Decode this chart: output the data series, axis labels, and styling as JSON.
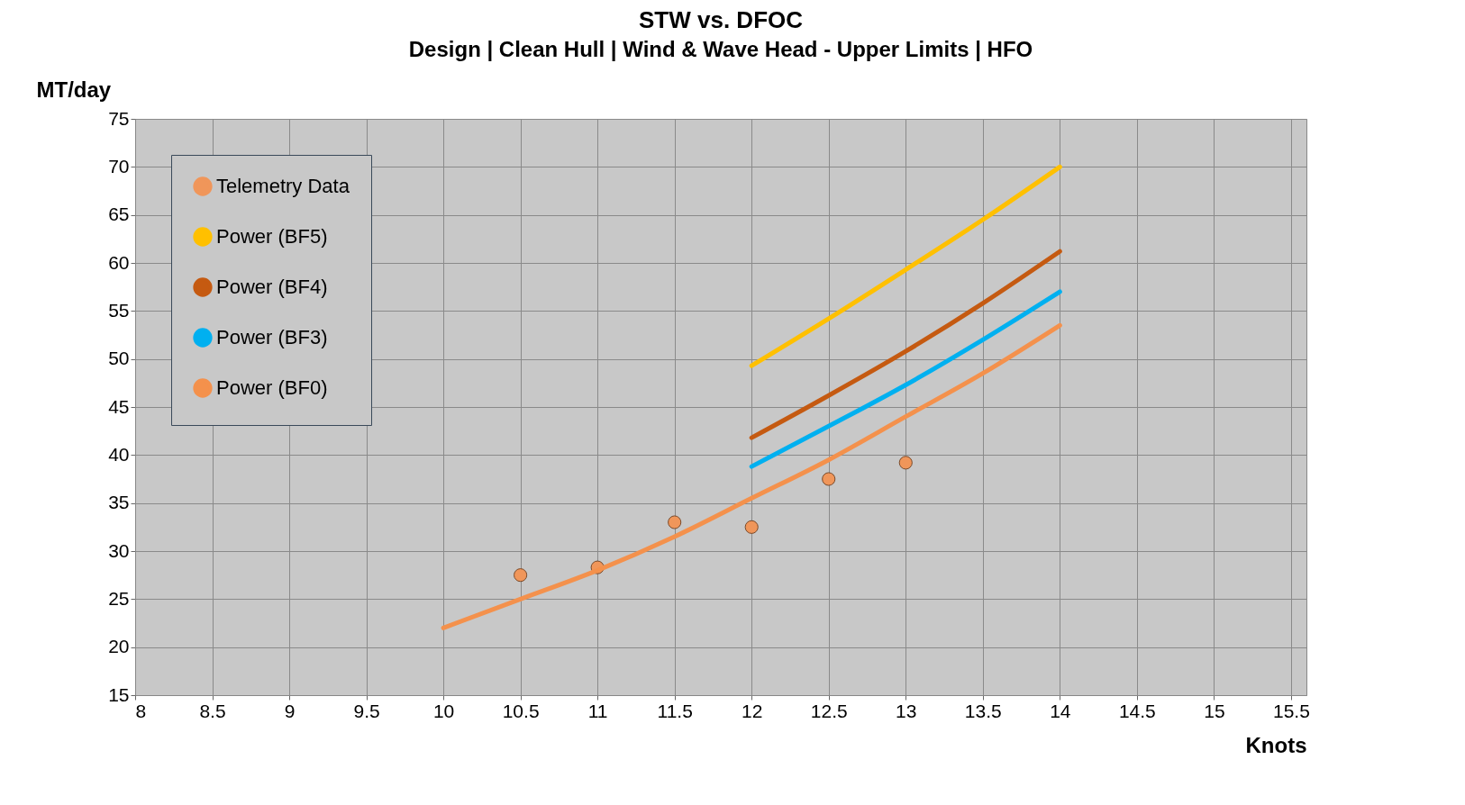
{
  "chart_data": {
    "type": "line",
    "title": "STW vs. DFOC",
    "subtitle": "Design | Clean Hull | Wind & Wave Head - Upper Limits | HFO",
    "xlabel": "Knots",
    "ylabel": "MT/day",
    "xlim": [
      8,
      15.6
    ],
    "xticks": [
      8,
      8.5,
      9,
      9.5,
      10,
      10.5,
      11,
      11.5,
      12,
      12.5,
      13,
      13.5,
      14,
      14.5,
      15,
      15.5
    ],
    "ylim": [
      15,
      75
    ],
    "yticks": [
      15,
      20,
      25,
      30,
      35,
      40,
      45,
      50,
      55,
      60,
      65,
      70,
      75
    ],
    "grid": true,
    "legend": "top left",
    "series": [
      {
        "name": "Telemetry Data",
        "type": "scatter",
        "color": "#f0965a",
        "x": [
          10.5,
          11,
          11.5,
          12,
          12.5,
          13
        ],
        "values": [
          27.5,
          28.3,
          33,
          32.5,
          37.5,
          39.2
        ]
      },
      {
        "name": "Power (BF5)",
        "color": "#ffc000",
        "x": [
          12,
          12.5,
          13,
          13.5,
          14
        ],
        "values": [
          49.3,
          54.2,
          59.3,
          64.5,
          70
        ]
      },
      {
        "name": "Power (BF4)",
        "color": "#c55a11",
        "x": [
          12,
          12.5,
          13,
          13.5,
          14
        ],
        "values": [
          41.8,
          46.2,
          50.8,
          55.8,
          61.2
        ]
      },
      {
        "name": "Power (BF3)",
        "color": "#00b0f0",
        "x": [
          12,
          12.5,
          13,
          13.5,
          14
        ],
        "values": [
          38.8,
          43,
          47.3,
          52,
          57
        ]
      },
      {
        "name": "Power (BF0)",
        "color": "#f4914c",
        "x": [
          10,
          10.5,
          11,
          11.5,
          12,
          12.5,
          13,
          13.5,
          14
        ],
        "values": [
          22,
          25,
          28,
          31.5,
          35.5,
          39.5,
          44,
          48.5,
          53.5
        ]
      }
    ]
  }
}
